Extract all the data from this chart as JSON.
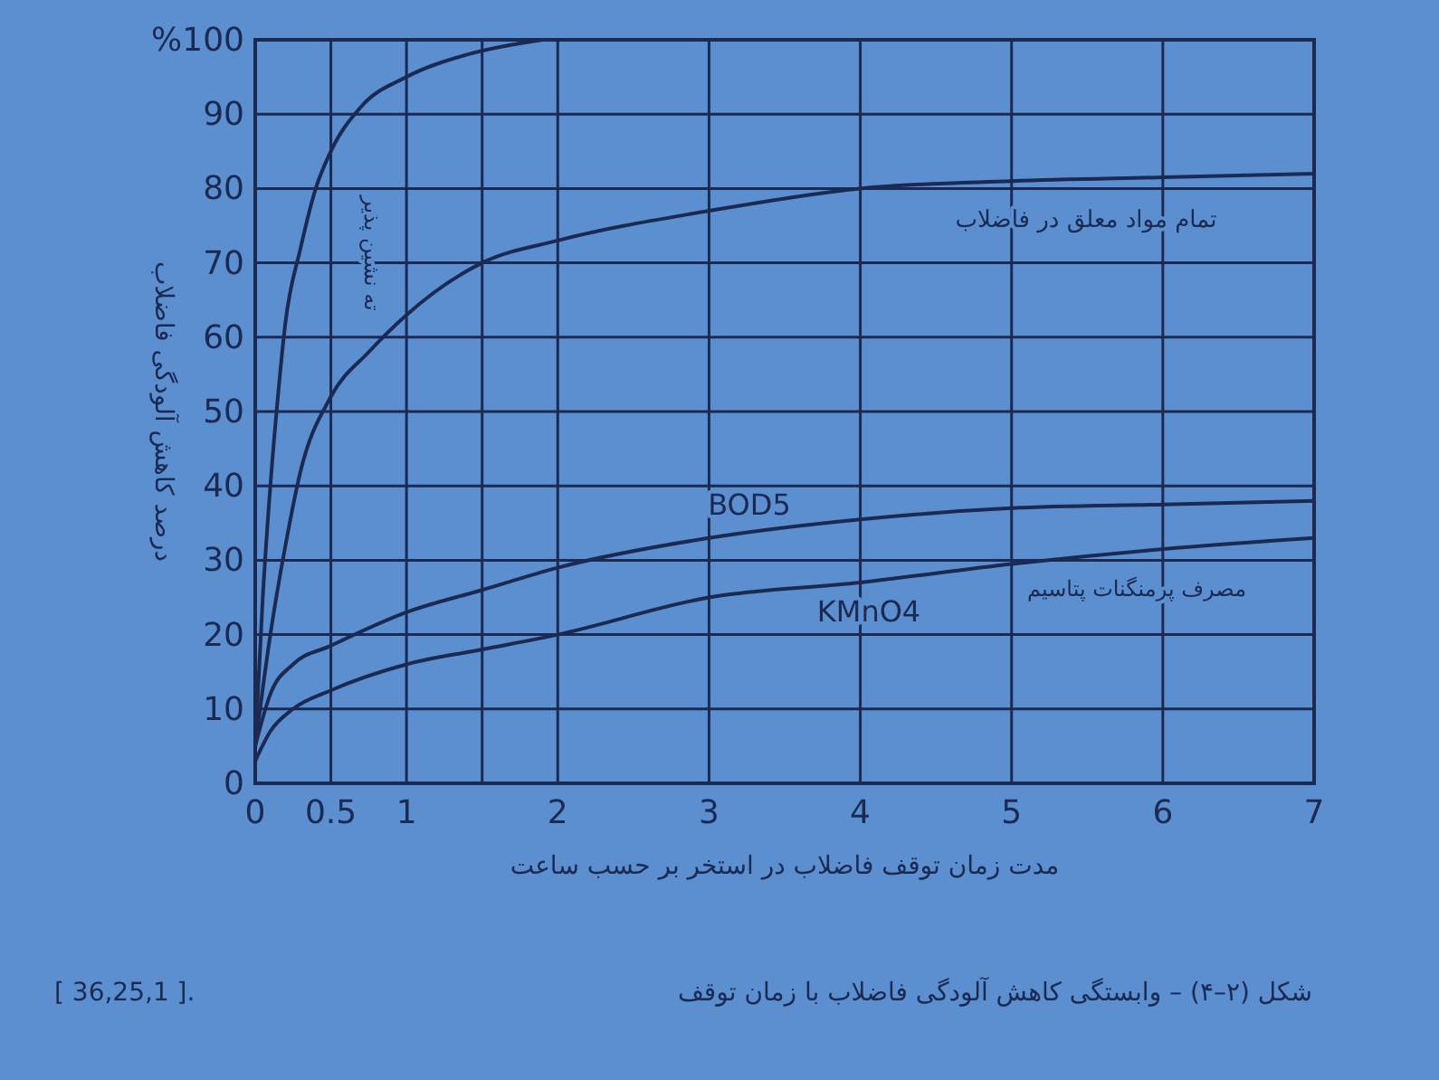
{
  "chart_data": {
    "type": "line",
    "xlabel": "مدت زمان توقف فاضلاب در استخر بر حسب ساعت",
    "ylabel": "درصد کاهش آلودگی فاضلاب",
    "xlim": [
      0,
      7
    ],
    "ylim": [
      0,
      100
    ],
    "xticks": [
      0,
      0.5,
      1,
      {
        "value": 1.5,
        "label": null
      },
      2,
      3,
      4,
      5,
      6,
      7
    ],
    "yticks": [
      0,
      10,
      20,
      30,
      40,
      50,
      60,
      70,
      80,
      90,
      {
        "value": 100,
        "label": "%100"
      }
    ],
    "grid": true,
    "line_style": "solid",
    "marker": "none",
    "series": [
      {
        "color": "#1b2a52",
        "x": [
          0,
          0.05,
          0.1,
          0.15,
          0.2,
          0.3,
          0.4,
          0.5,
          0.7,
          1,
          1.4,
          1.9
        ],
        "values": [
          5,
          25,
          40,
          52,
          62,
          72,
          80,
          85,
          91,
          95,
          98,
          100
        ]
      },
      {
        "color": "#1b2a52",
        "x": [
          0,
          0.1,
          0.2,
          0.3,
          0.5,
          0.75,
          1,
          1.5,
          2,
          3,
          4,
          5,
          6,
          7
        ],
        "values": [
          5,
          20,
          32,
          42,
          52,
          58,
          63,
          70,
          73,
          77,
          80,
          81,
          81.5,
          82
        ]
      },
      {
        "color": "#1b2a52",
        "x": [
          0,
          0.1,
          0.25,
          0.5,
          1,
          1.5,
          2,
          3,
          4,
          5,
          6,
          7
        ],
        "values": [
          5,
          12,
          16,
          18.5,
          23,
          26,
          29,
          33,
          35.5,
          37,
          37.5,
          38
        ]
      },
      {
        "color": "#1b2a52",
        "x": [
          0,
          0.1,
          0.25,
          0.5,
          1,
          1.5,
          2,
          3,
          4,
          5,
          6,
          7
        ],
        "values": [
          3,
          7,
          10,
          12.5,
          16,
          18,
          20,
          25,
          27,
          29.5,
          31.5,
          33
        ]
      }
    ],
    "annotations": [
      "ته نشین پذیر",
      "تمام مواد معلق در فاضلاب",
      "BOD5",
      "KMnO4",
      "مصرف پرمنگنات پتاسیم",
      "شکل (۲–۴) – وابستگی کاهش آلودگی فاضلاب با زمان توقف",
      "[ 36,25,1 ]."
    ]
  }
}
